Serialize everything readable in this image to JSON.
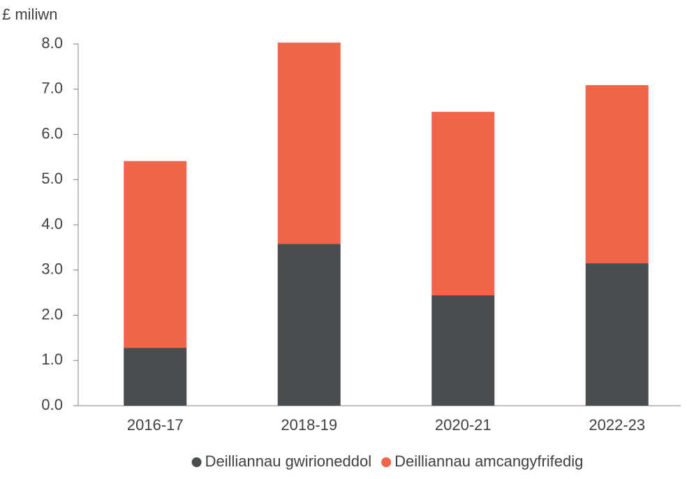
{
  "chart_data": {
    "type": "stacked_bar",
    "y_label": "£ miliwn",
    "categories": [
      "2016-17",
      "2018-19",
      "2020-21",
      "2022-23"
    ],
    "series": [
      {
        "name": "Deilliannau gwirioneddol",
        "color": "#4a4d50",
        "values": [
          1.28,
          3.58,
          2.44,
          3.15
        ]
      },
      {
        "name": "Deilliannau amcangyfrifedig",
        "color": "#f0644a",
        "values": [
          4.13,
          4.45,
          4.06,
          3.94
        ]
      }
    ],
    "ylim": [
      0,
      8
    ],
    "yticks": [
      {
        "value": 0,
        "label": "0.0"
      },
      {
        "value": 1,
        "label": "1.0"
      },
      {
        "value": 2,
        "label": "2.0"
      },
      {
        "value": 3,
        "label": "3.0"
      },
      {
        "value": 4,
        "label": "4.0"
      },
      {
        "value": 5,
        "label": "5.0"
      },
      {
        "value": 6,
        "label": "6.0"
      },
      {
        "value": 7,
        "label": "7.0"
      },
      {
        "value": 8,
        "label": "8.0"
      }
    ],
    "legend": "bottom"
  }
}
